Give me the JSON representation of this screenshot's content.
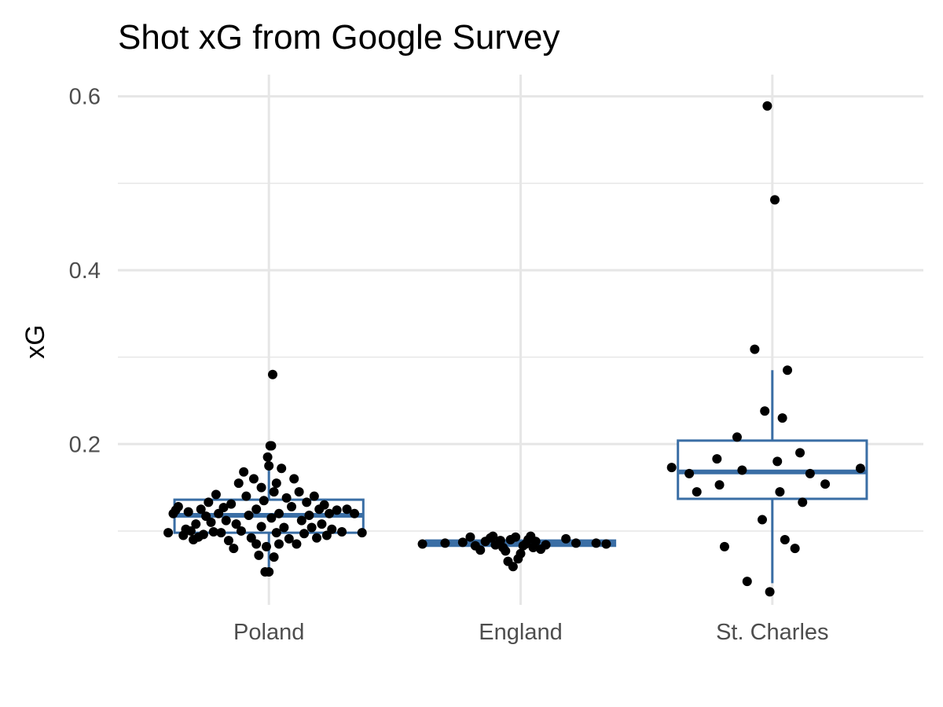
{
  "chart_data": {
    "type": "boxplot",
    "title": "Shot xG from Google Survey",
    "xlabel": "",
    "ylabel": "xG",
    "categories": [
      "Poland",
      "England",
      "St. Charles"
    ],
    "ylim": [
      0.015,
      0.625
    ],
    "yticks": [
      0.2,
      0.4,
      0.6
    ],
    "ytick_labels": [
      "0.2",
      "0.4",
      "0.6"
    ],
    "y_minor_ticks": [
      0.1,
      0.3,
      0.5
    ],
    "grid": true,
    "legend": "none",
    "colors": {
      "box": "#3a6ea5",
      "points": "#000000",
      "grid": "#e6e6e6"
    },
    "boxes": [
      {
        "category": "Poland",
        "q1": 0.098,
        "median": 0.118,
        "q3": 0.136,
        "whisker_low": 0.053,
        "whisker_high": 0.19
      },
      {
        "category": "England",
        "q1": 0.083,
        "median": 0.086,
        "q3": 0.089,
        "whisker_low": 0.08,
        "whisker_high": 0.09
      },
      {
        "category": "St. Charles",
        "q1": 0.137,
        "median": 0.168,
        "q3": 0.204,
        "whisker_low": 0.04,
        "whisker_high": 0.285
      }
    ],
    "series": [
      {
        "category": "Poland",
        "points": [
          {
            "x": 0.6,
            "y": 0.098
          },
          {
            "x": 0.62,
            "y": 0.12
          },
          {
            "x": 0.63,
            "y": 0.124
          },
          {
            "x": 0.64,
            "y": 0.128
          },
          {
            "x": 0.66,
            "y": 0.095
          },
          {
            "x": 0.67,
            "y": 0.102
          },
          {
            "x": 0.68,
            "y": 0.122
          },
          {
            "x": 0.69,
            "y": 0.1
          },
          {
            "x": 0.7,
            "y": 0.09
          },
          {
            "x": 0.71,
            "y": 0.108
          },
          {
            "x": 0.72,
            "y": 0.093
          },
          {
            "x": 0.73,
            "y": 0.125
          },
          {
            "x": 0.74,
            "y": 0.096
          },
          {
            "x": 0.75,
            "y": 0.117
          },
          {
            "x": 0.76,
            "y": 0.133
          },
          {
            "x": 0.77,
            "y": 0.11
          },
          {
            "x": 0.78,
            "y": 0.099
          },
          {
            "x": 0.79,
            "y": 0.142
          },
          {
            "x": 0.8,
            "y": 0.12
          },
          {
            "x": 0.81,
            "y": 0.098
          },
          {
            "x": 0.82,
            "y": 0.127
          },
          {
            "x": 0.83,
            "y": 0.112
          },
          {
            "x": 0.84,
            "y": 0.089
          },
          {
            "x": 0.85,
            "y": 0.131
          },
          {
            "x": 0.86,
            "y": 0.08
          },
          {
            "x": 0.87,
            "y": 0.108
          },
          {
            "x": 0.88,
            "y": 0.155
          },
          {
            "x": 0.89,
            "y": 0.1
          },
          {
            "x": 0.9,
            "y": 0.168
          },
          {
            "x": 0.91,
            "y": 0.14
          },
          {
            "x": 0.92,
            "y": 0.118
          },
          {
            "x": 0.93,
            "y": 0.092
          },
          {
            "x": 0.94,
            "y": 0.16
          },
          {
            "x": 0.95,
            "y": 0.125
          },
          {
            "x": 0.96,
            "y": 0.072
          },
          {
            "x": 0.97,
            "y": 0.105
          },
          {
            "x": 0.98,
            "y": 0.135
          },
          {
            "x": 0.99,
            "y": 0.082
          },
          {
            "x": 1.0,
            "y": 0.175
          },
          {
            "x": 1.01,
            "y": 0.115
          },
          {
            "x": 1.02,
            "y": 0.145
          },
          {
            "x": 1.03,
            "y": 0.098
          },
          {
            "x": 0.985,
            "y": 0.053
          },
          {
            "x": 1.0,
            "y": 0.053
          },
          {
            "x": 1.01,
            "y": 0.198
          },
          {
            "x": 1.015,
            "y": 0.28
          },
          {
            "x": 1.02,
            "y": 0.07
          },
          {
            "x": 1.03,
            "y": 0.155
          },
          {
            "x": 1.04,
            "y": 0.12
          },
          {
            "x": 1.05,
            "y": 0.172
          },
          {
            "x": 1.06,
            "y": 0.104
          },
          {
            "x": 1.07,
            "y": 0.138
          },
          {
            "x": 1.08,
            "y": 0.091
          },
          {
            "x": 1.09,
            "y": 0.128
          },
          {
            "x": 1.1,
            "y": 0.16
          },
          {
            "x": 1.11,
            "y": 0.085
          },
          {
            "x": 1.12,
            "y": 0.145
          },
          {
            "x": 1.13,
            "y": 0.112
          },
          {
            "x": 1.14,
            "y": 0.097
          },
          {
            "x": 1.15,
            "y": 0.133
          },
          {
            "x": 1.16,
            "y": 0.118
          },
          {
            "x": 1.17,
            "y": 0.104
          },
          {
            "x": 1.18,
            "y": 0.14
          },
          {
            "x": 1.19,
            "y": 0.092
          },
          {
            "x": 1.2,
            "y": 0.125
          },
          {
            "x": 1.21,
            "y": 0.108
          },
          {
            "x": 1.22,
            "y": 0.13
          },
          {
            "x": 1.23,
            "y": 0.095
          },
          {
            "x": 1.24,
            "y": 0.12
          },
          {
            "x": 1.25,
            "y": 0.102
          },
          {
            "x": 1.27,
            "y": 0.124
          },
          {
            "x": 1.29,
            "y": 0.099
          },
          {
            "x": 1.31,
            "y": 0.125
          },
          {
            "x": 1.34,
            "y": 0.12
          },
          {
            "x": 1.37,
            "y": 0.098
          },
          {
            "x": 0.995,
            "y": 0.185
          },
          {
            "x": 1.005,
            "y": 0.198
          },
          {
            "x": 0.97,
            "y": 0.15
          },
          {
            "x": 1.04,
            "y": 0.085
          },
          {
            "x": 0.95,
            "y": 0.085
          }
        ]
      },
      {
        "category": "England",
        "points": [
          {
            "x": 1.61,
            "y": 0.085
          },
          {
            "x": 1.7,
            "y": 0.086
          },
          {
            "x": 1.77,
            "y": 0.087
          },
          {
            "x": 1.8,
            "y": 0.093
          },
          {
            "x": 1.82,
            "y": 0.083
          },
          {
            "x": 1.84,
            "y": 0.078
          },
          {
            "x": 1.86,
            "y": 0.088
          },
          {
            "x": 1.88,
            "y": 0.092
          },
          {
            "x": 1.89,
            "y": 0.094
          },
          {
            "x": 1.9,
            "y": 0.084
          },
          {
            "x": 1.92,
            "y": 0.089
          },
          {
            "x": 1.93,
            "y": 0.081
          },
          {
            "x": 1.94,
            "y": 0.077
          },
          {
            "x": 1.95,
            "y": 0.065
          },
          {
            "x": 1.96,
            "y": 0.09
          },
          {
            "x": 1.97,
            "y": 0.059
          },
          {
            "x": 1.98,
            "y": 0.093
          },
          {
            "x": 1.99,
            "y": 0.068
          },
          {
            "x": 2.0,
            "y": 0.074
          },
          {
            "x": 2.01,
            "y": 0.083
          },
          {
            "x": 2.02,
            "y": 0.085
          },
          {
            "x": 2.03,
            "y": 0.09
          },
          {
            "x": 2.04,
            "y": 0.094
          },
          {
            "x": 2.05,
            "y": 0.081
          },
          {
            "x": 2.06,
            "y": 0.088
          },
          {
            "x": 2.08,
            "y": 0.079
          },
          {
            "x": 2.1,
            "y": 0.084
          },
          {
            "x": 2.18,
            "y": 0.091
          },
          {
            "x": 2.22,
            "y": 0.086
          },
          {
            "x": 2.3,
            "y": 0.086
          },
          {
            "x": 2.34,
            "y": 0.085
          }
        ]
      },
      {
        "category": "St. Charles",
        "points": [
          {
            "x": 2.6,
            "y": 0.173
          },
          {
            "x": 2.67,
            "y": 0.166
          },
          {
            "x": 2.7,
            "y": 0.145
          },
          {
            "x": 2.78,
            "y": 0.183
          },
          {
            "x": 2.79,
            "y": 0.153
          },
          {
            "x": 2.81,
            "y": 0.082
          },
          {
            "x": 2.86,
            "y": 0.208
          },
          {
            "x": 2.88,
            "y": 0.17
          },
          {
            "x": 2.9,
            "y": 0.042
          },
          {
            "x": 2.93,
            "y": 0.309
          },
          {
            "x": 2.96,
            "y": 0.113
          },
          {
            "x": 2.97,
            "y": 0.238
          },
          {
            "x": 2.99,
            "y": 0.03
          },
          {
            "x": 3.01,
            "y": 0.481
          },
          {
            "x": 3.02,
            "y": 0.18
          },
          {
            "x": 3.03,
            "y": 0.145
          },
          {
            "x": 3.04,
            "y": 0.23
          },
          {
            "x": 3.05,
            "y": 0.09
          },
          {
            "x": 3.06,
            "y": 0.285
          },
          {
            "x": 3.09,
            "y": 0.08
          },
          {
            "x": 3.11,
            "y": 0.19
          },
          {
            "x": 3.12,
            "y": 0.133
          },
          {
            "x": 3.15,
            "y": 0.166
          },
          {
            "x": 3.21,
            "y": 0.154
          },
          {
            "x": 3.35,
            "y": 0.172
          },
          {
            "x": 2.98,
            "y": 0.589
          }
        ]
      }
    ]
  }
}
